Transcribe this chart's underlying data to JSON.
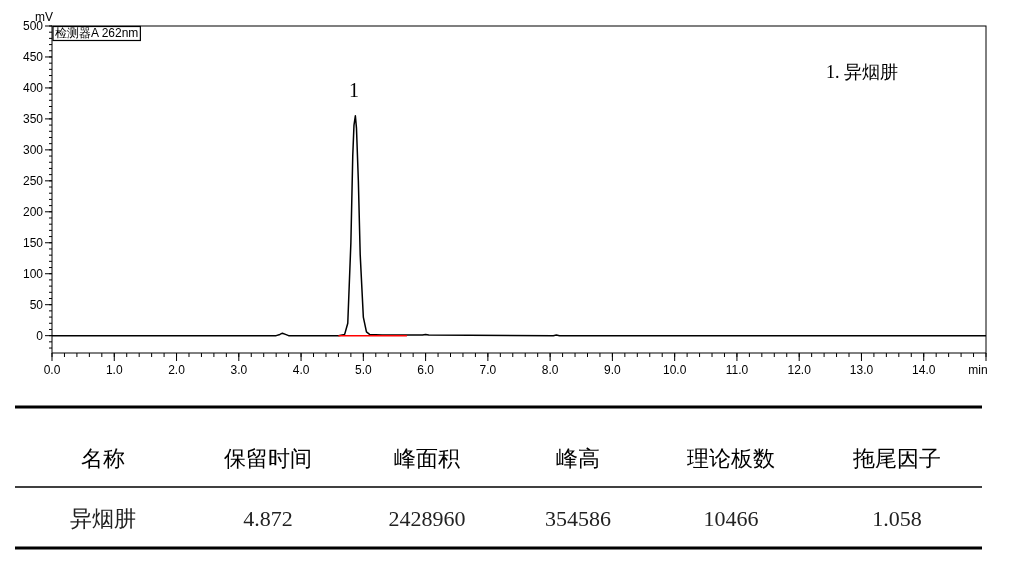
{
  "chart_data": [
    {
      "type": "line",
      "title": "检测器A 262nm",
      "xlabel": "min",
      "ylabel": "mV",
      "x": [
        0,
        3.6,
        3.66,
        3.7,
        3.75,
        3.8,
        4.6,
        4.7,
        4.75,
        4.8,
        4.83,
        4.85,
        4.872,
        4.89,
        4.92,
        4.95,
        5.0,
        5.05,
        5.1,
        5.3,
        5.95,
        6.0,
        6.05,
        8.05,
        8.1,
        8.15,
        15
      ],
      "series": [
        {
          "color": "#000000",
          "values": [
            0,
            0,
            2,
            4,
            2,
            0,
            0,
            2,
            20,
            150,
            290,
            340,
            355,
            335,
            250,
            130,
            30,
            6,
            2,
            1,
            1,
            2,
            1,
            0,
            1,
            0,
            0
          ]
        },
        {
          "type": "line",
          "color": "#ff0000",
          "x": [
            4.6,
            5.7
          ],
          "values": [
            0,
            0
          ]
        }
      ],
      "xlim": [
        0,
        15
      ],
      "ylim": [
        -28,
        500
      ],
      "xticks": [
        {
          "value": 0,
          "label": "0.0"
        },
        {
          "value": 1,
          "label": "1.0"
        },
        {
          "value": 2,
          "label": "2.0"
        },
        {
          "value": 3,
          "label": "3.0"
        },
        {
          "value": 4,
          "label": "4.0"
        },
        {
          "value": 5,
          "label": "5.0"
        },
        {
          "value": 6,
          "label": "6.0"
        },
        {
          "value": 7,
          "label": "7.0"
        },
        {
          "value": 8,
          "label": "8.0"
        },
        {
          "value": 9,
          "label": "9.0"
        },
        {
          "value": 10,
          "label": "10.0"
        },
        {
          "value": 11,
          "label": "11.0"
        },
        {
          "value": 12,
          "label": "12.0"
        },
        {
          "value": 13,
          "label": "13.0"
        },
        {
          "value": 14,
          "label": "14.0"
        },
        {
          "value": 15,
          "label": null
        }
      ],
      "yticks": [
        0,
        50,
        100,
        150,
        200,
        250,
        300,
        350,
        400,
        450,
        500
      ],
      "grid": false,
      "annotations": [
        "1",
        "1.  异烟肼"
      ]
    },
    {
      "type": "other",
      "annotations": [
        "名称",
        "保留时间",
        "峰面积",
        "峰高",
        "理论板数",
        "拖尾因子",
        "异烟肼",
        "4.872",
        "2428960",
        "354586",
        "10466",
        "1.058"
      ]
    }
  ]
}
